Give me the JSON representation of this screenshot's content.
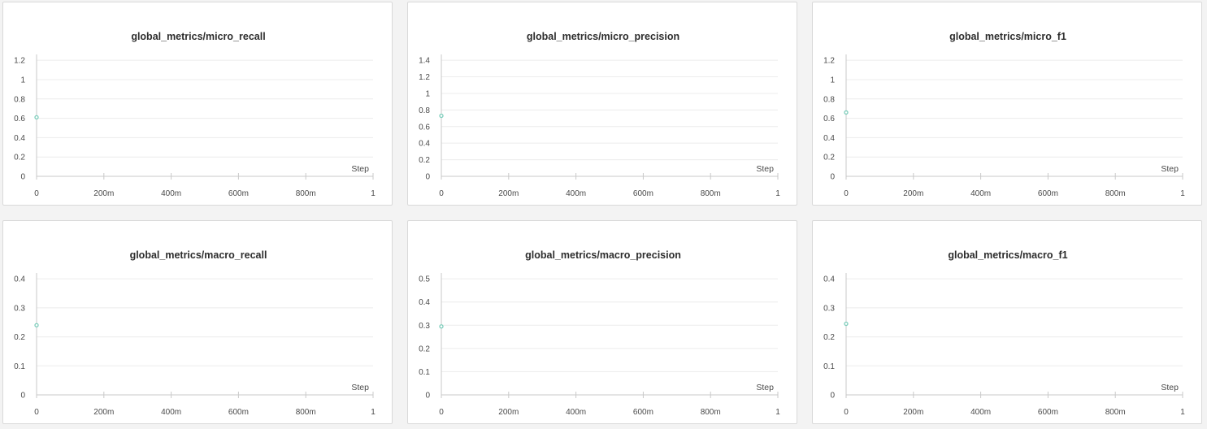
{
  "theme": {
    "page_bg": "#f3f3f3",
    "panel_bg": "#ffffff",
    "series_color": "#7dcdbb"
  },
  "chart_data": [
    {
      "type": "scatter",
      "title": "global_metrics/micro_recall",
      "xlabel": "Step",
      "ylabel": "",
      "xlim": [
        0,
        1
      ],
      "ylim": [
        0,
        1.2
      ],
      "x_ticks": [
        "0",
        "200m",
        "400m",
        "600m",
        "800m",
        "1"
      ],
      "y_ticks": [
        "0",
        "0.2",
        "0.4",
        "0.6",
        "0.8",
        "1",
        "1.2"
      ],
      "grid": true,
      "series": [
        {
          "x": [
            0
          ],
          "values": [
            0.61
          ]
        }
      ]
    },
    {
      "type": "scatter",
      "title": "global_metrics/micro_precision",
      "xlabel": "Step",
      "ylabel": "",
      "xlim": [
        0,
        1
      ],
      "ylim": [
        0,
        1.4
      ],
      "x_ticks": [
        "0",
        "200m",
        "400m",
        "600m",
        "800m",
        "1"
      ],
      "y_ticks": [
        "0",
        "0.2",
        "0.4",
        "0.6",
        "0.8",
        "1",
        "1.2",
        "1.4"
      ],
      "grid": true,
      "series": [
        {
          "x": [
            0
          ],
          "values": [
            0.73
          ]
        }
      ]
    },
    {
      "type": "scatter",
      "title": "global_metrics/micro_f1",
      "xlabel": "Step",
      "ylabel": "",
      "xlim": [
        0,
        1
      ],
      "ylim": [
        0,
        1.2
      ],
      "x_ticks": [
        "0",
        "200m",
        "400m",
        "600m",
        "800m",
        "1"
      ],
      "y_ticks": [
        "0",
        "0.2",
        "0.4",
        "0.6",
        "0.8",
        "1",
        "1.2"
      ],
      "grid": true,
      "series": [
        {
          "x": [
            0
          ],
          "values": [
            0.66
          ]
        }
      ]
    },
    {
      "type": "scatter",
      "title": "global_metrics/macro_recall",
      "xlabel": "Step",
      "ylabel": "",
      "xlim": [
        0,
        1
      ],
      "ylim": [
        0,
        0.4
      ],
      "x_ticks": [
        "0",
        "200m",
        "400m",
        "600m",
        "800m",
        "1"
      ],
      "y_ticks": [
        "0",
        "0.1",
        "0.2",
        "0.3",
        "0.4"
      ],
      "grid": true,
      "series": [
        {
          "x": [
            0
          ],
          "values": [
            0.24
          ]
        }
      ]
    },
    {
      "type": "scatter",
      "title": "global_metrics/macro_precision",
      "xlabel": "Step",
      "ylabel": "",
      "xlim": [
        0,
        1
      ],
      "ylim": [
        0,
        0.5
      ],
      "x_ticks": [
        "0",
        "200m",
        "400m",
        "600m",
        "800m",
        "1"
      ],
      "y_ticks": [
        "0",
        "0.1",
        "0.2",
        "0.3",
        "0.4",
        "0.5"
      ],
      "grid": true,
      "series": [
        {
          "x": [
            0
          ],
          "values": [
            0.295
          ]
        }
      ]
    },
    {
      "type": "scatter",
      "title": "global_metrics/macro_f1",
      "xlabel": "Step",
      "ylabel": "",
      "xlim": [
        0,
        1
      ],
      "ylim": [
        0,
        0.4
      ],
      "x_ticks": [
        "0",
        "200m",
        "400m",
        "600m",
        "800m",
        "1"
      ],
      "y_ticks": [
        "0",
        "0.1",
        "0.2",
        "0.3",
        "0.4"
      ],
      "grid": true,
      "series": [
        {
          "x": [
            0
          ],
          "values": [
            0.245
          ]
        }
      ]
    }
  ]
}
